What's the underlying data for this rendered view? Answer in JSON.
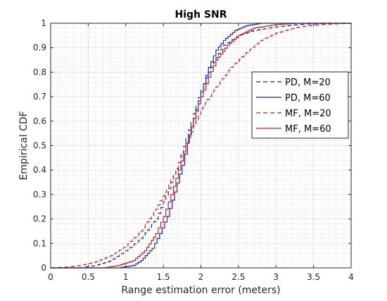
{
  "chart_data": {
    "type": "line",
    "title": "High SNR",
    "xlabel": "Range estimation error (meters)",
    "ylabel": "Empirical CDF",
    "xlim": [
      0,
      4
    ],
    "ylim": [
      0,
      1
    ],
    "xticks": [
      "0",
      "0.5",
      "1",
      "1.5",
      "2",
      "2.5",
      "3",
      "3.5",
      "4"
    ],
    "yticks": [
      "0",
      "0.1",
      "0.2",
      "0.3",
      "0.4",
      "0.5",
      "0.6",
      "0.7",
      "0.8",
      "0.9",
      "1"
    ],
    "grid": true,
    "minor_grid": true,
    "legend_position": "right",
    "series": [
      {
        "name": "PD, M=20",
        "color": "#1f1fbf",
        "style": "dashed",
        "points": [
          [
            0,
            0
          ],
          [
            0.4,
            0
          ],
          [
            0.6,
            0.01
          ],
          [
            0.8,
            0.03
          ],
          [
            1.0,
            0.07
          ],
          [
            1.2,
            0.12
          ],
          [
            1.4,
            0.2
          ],
          [
            1.5,
            0.27
          ],
          [
            1.6,
            0.35
          ],
          [
            1.7,
            0.43
          ],
          [
            1.8,
            0.53
          ],
          [
            1.9,
            0.63
          ],
          [
            2.0,
            0.73
          ],
          [
            2.1,
            0.8
          ],
          [
            2.2,
            0.86
          ],
          [
            2.3,
            0.91
          ],
          [
            2.5,
            0.95
          ],
          [
            2.7,
            0.97
          ],
          [
            3.0,
            0.985
          ],
          [
            3.3,
            0.995
          ],
          [
            3.7,
            1.0
          ],
          [
            4.0,
            1.0
          ]
        ]
      },
      {
        "name": "PD, M=60",
        "color": "#1f1fbf",
        "style": "solid",
        "points": [
          [
            0,
            0
          ],
          [
            0.9,
            0
          ],
          [
            1.1,
            0.01
          ],
          [
            1.2,
            0.03
          ],
          [
            1.35,
            0.08
          ],
          [
            1.45,
            0.14
          ],
          [
            1.55,
            0.21
          ],
          [
            1.65,
            0.31
          ],
          [
            1.75,
            0.42
          ],
          [
            1.82,
            0.51
          ],
          [
            1.9,
            0.61
          ],
          [
            2.0,
            0.72
          ],
          [
            2.1,
            0.82
          ],
          [
            2.2,
            0.89
          ],
          [
            2.3,
            0.93
          ],
          [
            2.45,
            0.97
          ],
          [
            2.6,
            0.99
          ],
          [
            2.8,
            1.0
          ],
          [
            4.0,
            1.0
          ]
        ]
      },
      {
        "name": "MF, M=20",
        "color": "#cc1f1f",
        "style": "dashed",
        "points": [
          [
            0,
            0
          ],
          [
            0.2,
            0.003
          ],
          [
            0.4,
            0.01
          ],
          [
            0.6,
            0.025
          ],
          [
            0.8,
            0.05
          ],
          [
            1.0,
            0.09
          ],
          [
            1.2,
            0.15
          ],
          [
            1.4,
            0.24
          ],
          [
            1.6,
            0.36
          ],
          [
            1.7,
            0.43
          ],
          [
            1.8,
            0.51
          ],
          [
            1.9,
            0.58
          ],
          [
            2.0,
            0.65
          ],
          [
            2.2,
            0.74
          ],
          [
            2.4,
            0.82
          ],
          [
            2.6,
            0.88
          ],
          [
            2.8,
            0.93
          ],
          [
            3.0,
            0.96
          ],
          [
            3.3,
            0.985
          ],
          [
            3.6,
            0.995
          ],
          [
            4.0,
            1.0
          ]
        ]
      },
      {
        "name": "MF, M=60",
        "color": "#cc1f1f",
        "style": "solid",
        "points": [
          [
            0,
            0
          ],
          [
            0.7,
            0
          ],
          [
            0.9,
            0.01
          ],
          [
            1.1,
            0.03
          ],
          [
            1.25,
            0.07
          ],
          [
            1.4,
            0.14
          ],
          [
            1.5,
            0.21
          ],
          [
            1.6,
            0.3
          ],
          [
            1.7,
            0.4
          ],
          [
            1.8,
            0.51
          ],
          [
            1.9,
            0.61
          ],
          [
            2.0,
            0.7
          ],
          [
            2.1,
            0.78
          ],
          [
            2.2,
            0.85
          ],
          [
            2.35,
            0.91
          ],
          [
            2.5,
            0.95
          ],
          [
            2.7,
            0.98
          ],
          [
            3.0,
            0.995
          ],
          [
            3.3,
            1.0
          ],
          [
            4.0,
            1.0
          ]
        ]
      }
    ]
  }
}
